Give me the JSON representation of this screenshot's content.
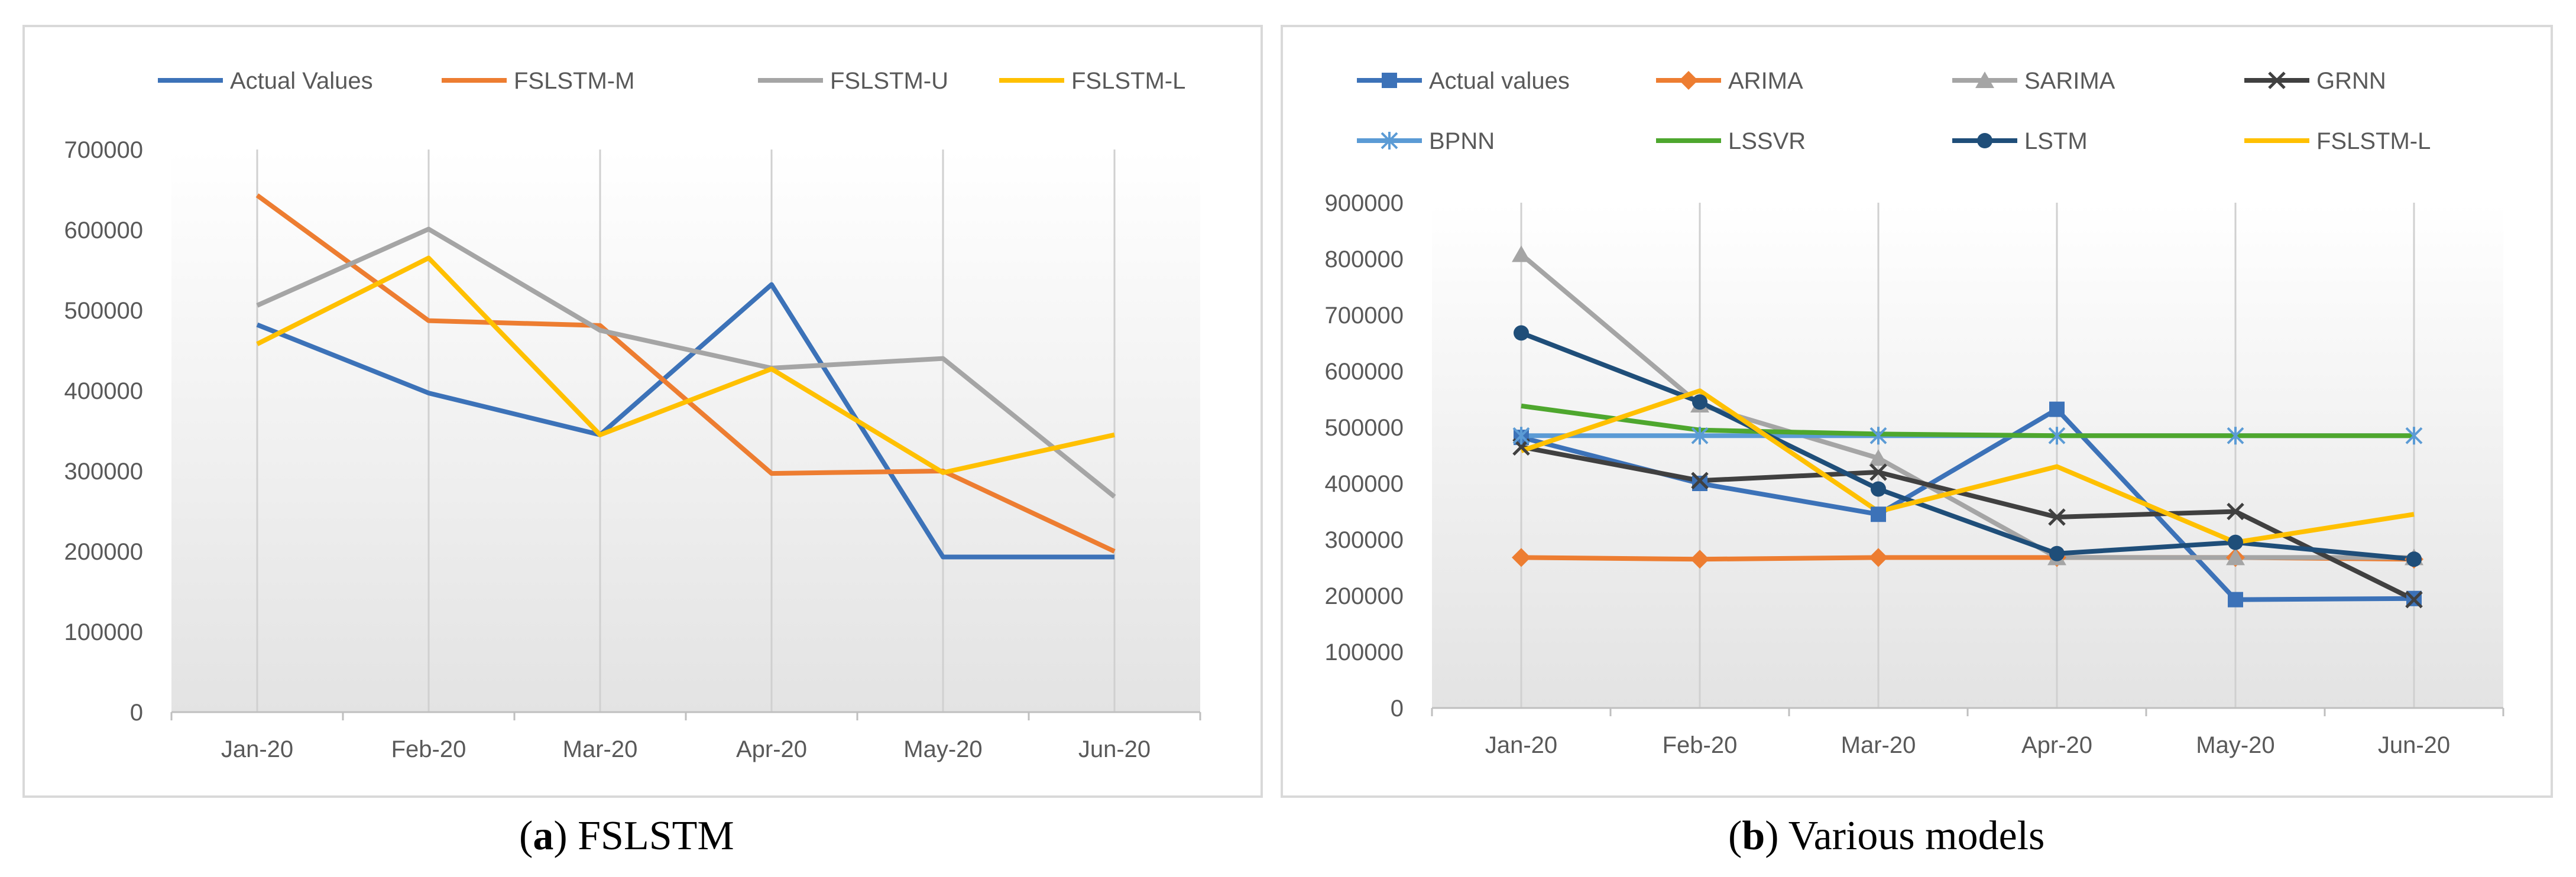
{
  "chart_data": [
    {
      "type": "line",
      "caption_letter": "a",
      "caption_text": " FSLSTM",
      "title": "",
      "xlabel": "",
      "ylabel": "",
      "categories": [
        "Jan-20",
        "Feb-20",
        "Mar-20",
        "Apr-20",
        "May-20",
        "Jun-20"
      ],
      "ylim": [
        0,
        700000
      ],
      "yticks": [
        0,
        100000,
        200000,
        300000,
        400000,
        500000,
        600000,
        700000
      ],
      "grid": "vertical",
      "legend": "top",
      "series": [
        {
          "name": "Actual Values",
          "color": "#3c72b8",
          "marker": "none",
          "values": [
            482000,
            397000,
            345000,
            532000,
            193000,
            193000
          ]
        },
        {
          "name": "FSLSTM-M",
          "color": "#ed7d31",
          "marker": "none",
          "values": [
            643000,
            487000,
            481000,
            297000,
            300000,
            200000
          ]
        },
        {
          "name": "FSLSTM-U",
          "color": "#a5a5a5",
          "marker": "none",
          "values": [
            506000,
            601000,
            475000,
            428000,
            440000,
            268000
          ]
        },
        {
          "name": "FSLSTM-L",
          "color": "#ffc000",
          "marker": "none",
          "values": [
            458000,
            565000,
            345000,
            427000,
            298000,
            345000
          ]
        }
      ]
    },
    {
      "type": "line",
      "caption_letter": "b",
      "caption_text": " Various models",
      "title": "",
      "xlabel": "",
      "ylabel": "",
      "categories": [
        "Jan-20",
        "Feb-20",
        "Mar-20",
        "Apr-20",
        "May-20",
        "Jun-20"
      ],
      "ylim": [
        0,
        900000
      ],
      "yticks": [
        0,
        100000,
        200000,
        300000,
        400000,
        500000,
        600000,
        700000,
        800000,
        900000
      ],
      "grid": "vertical",
      "legend": "top",
      "series": [
        {
          "name": "Actual values",
          "color": "#3c72b8",
          "marker": "square",
          "values": [
            482000,
            400000,
            345000,
            532000,
            193000,
            195000
          ]
        },
        {
          "name": "ARIMA",
          "color": "#ed7d31",
          "marker": "diamond",
          "values": [
            268000,
            265000,
            268000,
            268000,
            268000,
            265000
          ]
        },
        {
          "name": "SARIMA",
          "color": "#a5a5a5",
          "marker": "triangle",
          "values": [
            808000,
            540000,
            445000,
            268000,
            268000,
            268000
          ]
        },
        {
          "name": "GRNN",
          "color": "#404040",
          "marker": "x",
          "values": [
            465000,
            405000,
            420000,
            340000,
            350000,
            193000
          ]
        },
        {
          "name": "BPNN",
          "color": "#5b9bd5",
          "marker": "asterisk",
          "values": [
            485000,
            485000,
            485000,
            485000,
            485000,
            485000
          ]
        },
        {
          "name": "LSSVR",
          "color": "#4ea72e",
          "marker": "none",
          "values": [
            538000,
            495000,
            488000,
            485000,
            485000,
            485000
          ]
        },
        {
          "name": "LSTM",
          "color": "#1f4e79",
          "marker": "circle",
          "values": [
            668000,
            545000,
            390000,
            275000,
            295000,
            265000
          ]
        },
        {
          "name": "FSLSTM-L",
          "color": "#ffc000",
          "marker": "none",
          "values": [
            458000,
            565000,
            350000,
            430000,
            295000,
            345000
          ]
        }
      ]
    }
  ]
}
